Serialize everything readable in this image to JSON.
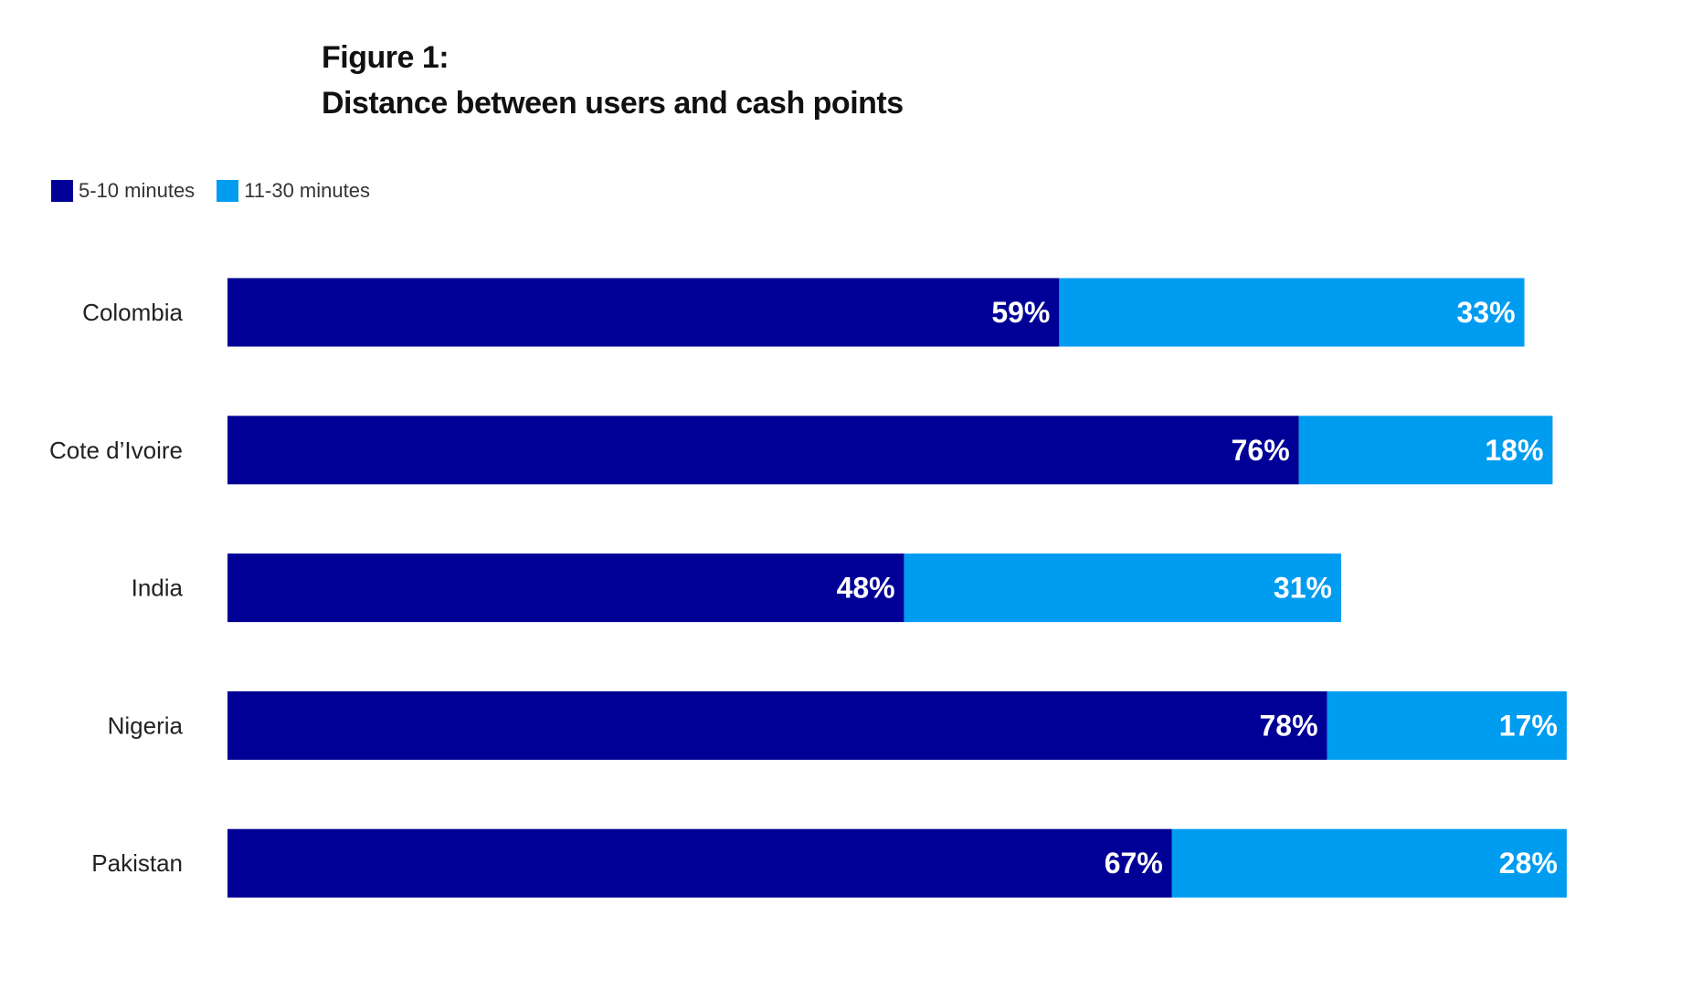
{
  "chart_data": {
    "type": "bar",
    "orientation": "horizontal",
    "stacked": true,
    "title_line1": "Figure 1:",
    "title_line2": "Distance between users and cash points",
    "categories": [
      "Colombia",
      "Cote d’Ivoire",
      "India",
      "Nigeria",
      "Pakistan"
    ],
    "series": [
      {
        "name": "5-10 minutes",
        "color": "#000096",
        "values": [
          59,
          76,
          48,
          78,
          67
        ],
        "labels": [
          "59%",
          "76%",
          "48%",
          "78%",
          "67%"
        ]
      },
      {
        "name": "11-30 minutes",
        "color": "#009cf0",
        "values": [
          33,
          18,
          31,
          17,
          28
        ],
        "labels": [
          "33%",
          "18%",
          "31%",
          "17%",
          "28%"
        ]
      }
    ],
    "xlim": [
      0,
      100
    ],
    "grid": false,
    "legend_position": "top-left"
  }
}
